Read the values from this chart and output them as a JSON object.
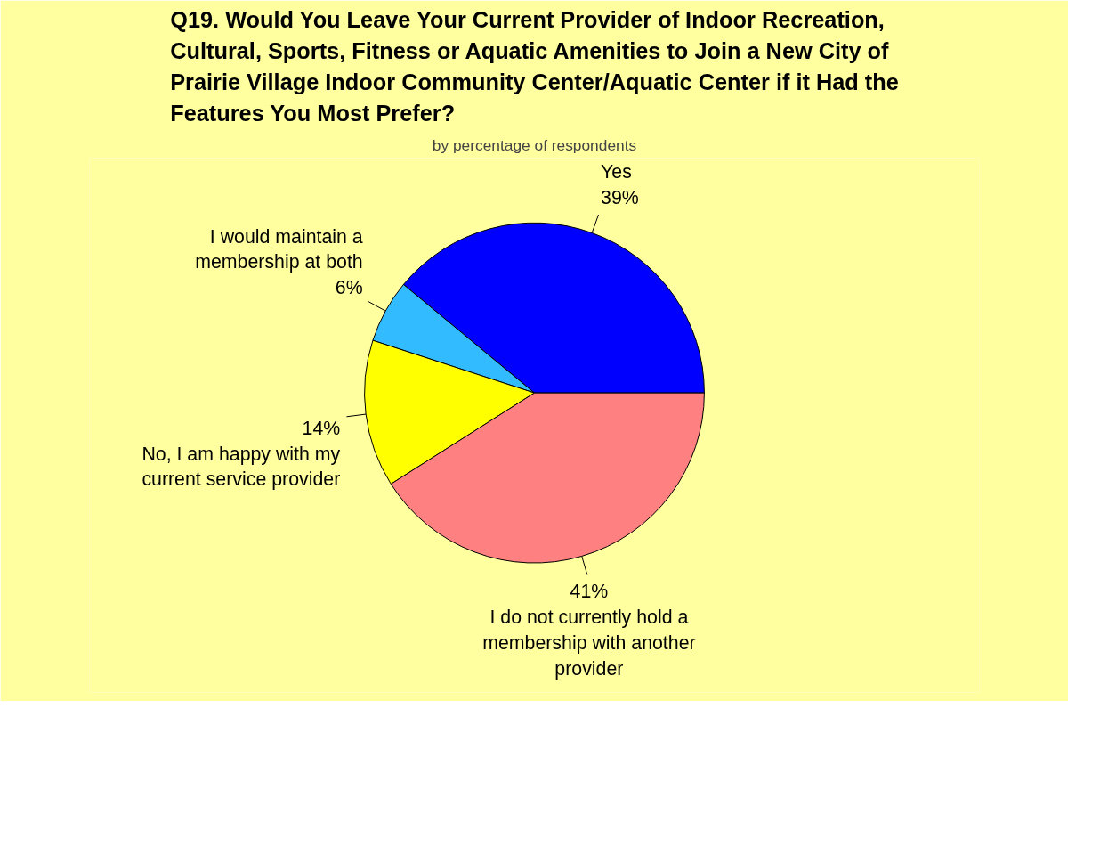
{
  "chart_data": {
    "type": "pie",
    "title": "Q19. Would You Leave Your Current Provider of Indoor Recreation, Cultural, Sports, Fitness or Aquatic Amenities to Join a New City of Prairie Village Indoor Community Center/Aquatic Center if it Had the Features You Most Prefer?",
    "subtitle": "by percentage of respondents",
    "categories": [
      "Yes",
      "I would maintain a membership at both",
      "No, I am happy with my current service provider",
      "I do not currently hold a membership with another provider"
    ],
    "values": [
      39,
      6,
      14,
      41
    ],
    "value_labels": [
      "39%",
      "6%",
      "14%",
      "41%"
    ],
    "colors": [
      "#0000ff",
      "#33bbff",
      "#ffff00",
      "#ff8080"
    ],
    "legend": false
  }
}
